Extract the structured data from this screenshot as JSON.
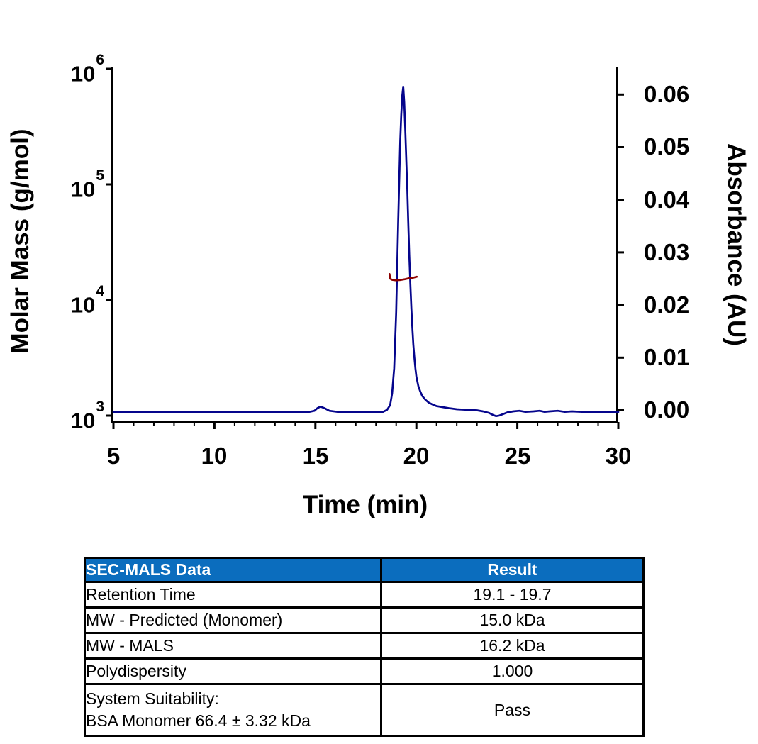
{
  "chart": {
    "y_left": {
      "title": "Molar Mass (g/mol)",
      "ticks": [
        {
          "base": "10",
          "exp": "6"
        },
        {
          "base": "10",
          "exp": "5"
        },
        {
          "base": "10",
          "exp": "4"
        },
        {
          "base": "10",
          "exp": "3"
        }
      ]
    },
    "y_right": {
      "title": "Absorbance (AU)",
      "ticks": [
        "0.06",
        "0.05",
        "0.04",
        "0.03",
        "0.02",
        "0.01",
        "0.00"
      ]
    },
    "x": {
      "title": "Time (min)",
      "ticks": [
        "5",
        "10",
        "15",
        "20",
        "25",
        "30"
      ]
    },
    "colors": {
      "uv_trace": "#05058C",
      "mals_trace": "#8B0000",
      "axis": "#000000"
    }
  },
  "chart_data": {
    "type": "line",
    "title": "",
    "xlabel": "Time (min)",
    "ylabel_left": "Molar Mass (g/mol)",
    "ylabel_right": "Absorbance (AU)",
    "x_range": [
      5,
      30
    ],
    "x_major_tick_step": 5,
    "x_minor_tick_step": 1,
    "right_axis": {
      "range": [
        0.0,
        0.06
      ],
      "tick_step": 0.01,
      "scale": "linear"
    },
    "left_axis": {
      "range": [
        1000,
        1000000
      ],
      "scale": "log",
      "tick_decades": [
        6,
        5,
        4,
        3
      ]
    },
    "grid": false,
    "legend": "none",
    "series": [
      {
        "name": "uv-absorbance",
        "axis": "right",
        "color": "#05058C",
        "points": [
          [
            5,
            -0.0003
          ],
          [
            8,
            -0.0003
          ],
          [
            11,
            -0.0003
          ],
          [
            13.5,
            -0.0003
          ],
          [
            14.7,
            -0.0003
          ],
          [
            14.95,
            -0.0001
          ],
          [
            15.1,
            0.0004
          ],
          [
            15.25,
            0.0007
          ],
          [
            15.45,
            0.0004
          ],
          [
            15.7,
            -0.0001
          ],
          [
            16.1,
            -0.0003
          ],
          [
            17.0,
            -0.0003
          ],
          [
            18.0,
            -0.0003
          ],
          [
            18.35,
            -0.0003
          ],
          [
            18.55,
            0.0001
          ],
          [
            18.7,
            0.001
          ],
          [
            18.8,
            0.0032
          ],
          [
            18.9,
            0.008
          ],
          [
            19.0,
            0.0185
          ],
          [
            19.05,
            0.027
          ],
          [
            19.1,
            0.036
          ],
          [
            19.15,
            0.0435
          ],
          [
            19.2,
            0.051
          ],
          [
            19.25,
            0.056
          ],
          [
            19.3,
            0.0598
          ],
          [
            19.35,
            0.0615
          ],
          [
            19.4,
            0.0585
          ],
          [
            19.45,
            0.0535
          ],
          [
            19.5,
            0.0475
          ],
          [
            19.55,
            0.042
          ],
          [
            19.6,
            0.0355
          ],
          [
            19.65,
            0.0295
          ],
          [
            19.7,
            0.024
          ],
          [
            19.75,
            0.0195
          ],
          [
            19.8,
            0.0158
          ],
          [
            19.85,
            0.0125
          ],
          [
            19.9,
            0.01
          ],
          [
            19.95,
            0.008
          ],
          [
            20.0,
            0.0064
          ],
          [
            20.1,
            0.0046
          ],
          [
            20.2,
            0.0035
          ],
          [
            20.3,
            0.0027
          ],
          [
            20.45,
            0.002
          ],
          [
            20.6,
            0.0015
          ],
          [
            20.8,
            0.0011
          ],
          [
            21.0,
            0.0008
          ],
          [
            21.3,
            0.0006
          ],
          [
            21.6,
            0.0004
          ],
          [
            22.0,
            0.0002
          ],
          [
            22.5,
            0.0001
          ],
          [
            23.0,
            0.0
          ],
          [
            23.3,
            -0.0002
          ],
          [
            23.6,
            -0.0005
          ],
          [
            23.8,
            -0.0009
          ],
          [
            23.95,
            -0.0011
          ],
          [
            24.1,
            -0.001
          ],
          [
            24.3,
            -0.0007
          ],
          [
            24.5,
            -0.0004
          ],
          [
            24.8,
            -0.0002
          ],
          [
            25.1,
            -0.0001
          ],
          [
            25.4,
            -0.0003
          ],
          [
            25.8,
            -0.0002
          ],
          [
            26.1,
            -0.0001
          ],
          [
            26.35,
            -0.0003
          ],
          [
            26.6,
            -0.0002
          ],
          [
            27.0,
            -0.0001
          ],
          [
            27.35,
            -0.0003
          ],
          [
            27.7,
            -0.0002
          ],
          [
            28.2,
            -0.0003
          ],
          [
            28.8,
            -0.0003
          ],
          [
            29.4,
            -0.0003
          ],
          [
            30,
            -0.0003
          ]
        ]
      },
      {
        "name": "molar-mass-mals",
        "axis": "left_log",
        "color": "#8B0000",
        "points": [
          [
            18.67,
            16800
          ],
          [
            18.7,
            15300
          ],
          [
            18.8,
            14950
          ],
          [
            19.0,
            14780
          ],
          [
            19.2,
            14900
          ],
          [
            19.45,
            15150
          ],
          [
            19.65,
            15450
          ],
          [
            19.85,
            15600
          ],
          [
            20.02,
            15900
          ]
        ]
      }
    ]
  },
  "table": {
    "header_bg_color": "#0B6DBE",
    "headers": [
      "SEC-MALS Data",
      "Result"
    ],
    "rows": [
      {
        "label": "Retention Time",
        "value": "19.1 - 19.7"
      },
      {
        "label": "MW - Predicted (Monomer)",
        "value": "15.0 kDa"
      },
      {
        "label": "MW - MALS",
        "value": "16.2 kDa"
      },
      {
        "label": "Polydispersity",
        "value": "1.000"
      },
      {
        "label_line1": "System Suitability:",
        "label_line2": "BSA Monomer 66.4 ± 3.32 kDa",
        "value": "Pass"
      }
    ]
  }
}
